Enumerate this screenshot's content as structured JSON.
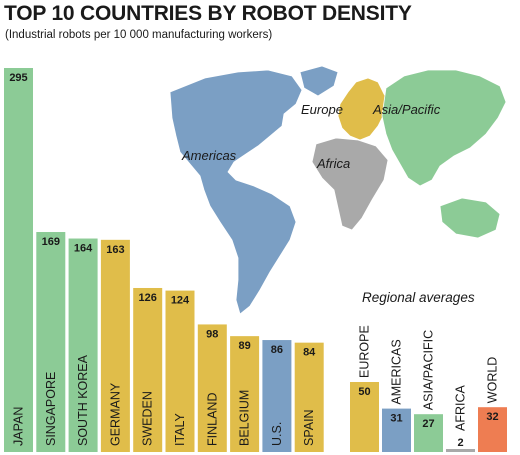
{
  "title": "TOP 10 COUNTRIES BY ROBOT DENSITY",
  "subtitle": "(Industrial robots per 10 000 manufacturing workers)",
  "map": {
    "regions": [
      {
        "label": "Americas",
        "color": "#7b9fc4"
      },
      {
        "label": "Europe",
        "color": "#e0bd4a"
      },
      {
        "label": "Asia/Pacific",
        "color": "#8ccb96"
      },
      {
        "label": "Africa",
        "color": "#a9a9a9"
      }
    ]
  },
  "chart_data": [
    {
      "type": "bar",
      "title": "TOP 10 COUNTRIES BY ROBOT DENSITY",
      "subtitle": "(Industrial robots per 10 000 manufacturing workers)",
      "categories": [
        "JAPAN",
        "SINGAPORE",
        "SOUTH KOREA",
        "GERMANY",
        "SWEDEN",
        "ITALY",
        "FINLAND",
        "BELGIUM",
        "U.S.",
        "SPAIN"
      ],
      "values": [
        295,
        169,
        164,
        163,
        126,
        124,
        98,
        89,
        86,
        84
      ],
      "colors": [
        "#8ccb96",
        "#8ccb96",
        "#8ccb96",
        "#e0bd4a",
        "#e0bd4a",
        "#e0bd4a",
        "#e0bd4a",
        "#e0bd4a",
        "#7b9fc4",
        "#e0bd4a"
      ],
      "ylim": [
        0,
        295
      ],
      "grid": false,
      "xlabel": "",
      "ylabel": ""
    },
    {
      "type": "bar",
      "title": "Regional averages",
      "categories": [
        "EUROPE",
        "AMERICAS",
        "ASIA/PACIFIC",
        "AFRICA",
        "WORLD"
      ],
      "values": [
        50,
        31,
        27,
        2,
        32
      ],
      "colors": [
        "#e0bd4a",
        "#7b9fc4",
        "#8ccb96",
        "#a9a9a9",
        "#ee7d52"
      ],
      "grid": false,
      "xlabel": "",
      "ylabel": ""
    }
  ]
}
